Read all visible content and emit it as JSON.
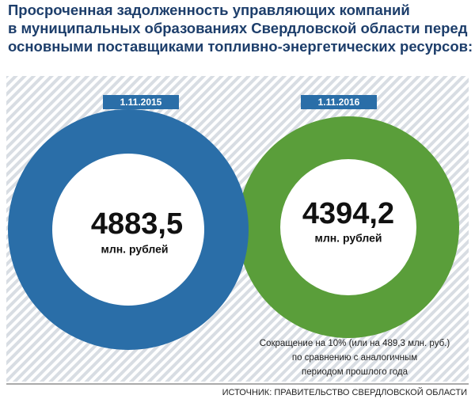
{
  "header": {
    "title": [
      "Просроченная задолженность управляющих компаний",
      "в муниципальных образованиях Свердловской области перед",
      "основными поставщиками топливно-энергетических ресурсов:"
    ]
  },
  "circles": [
    {
      "date": "1.11.2015",
      "value": "4883,5",
      "unit": "млн. рублей"
    },
    {
      "date": "1.11.2016",
      "value": "4394,2",
      "unit": "млн. рублей"
    }
  ],
  "note": [
    "Сокращение на 10% (или на 489,3 млн. руб.)",
    "по сравнению с аналогичным",
    "периодом прошлого года"
  ],
  "source": "ИСТОЧНИК: ПРАВИТЕЛЬСТВО СВЕРДЛОВСКОЙ ОБЛАСТИ"
}
